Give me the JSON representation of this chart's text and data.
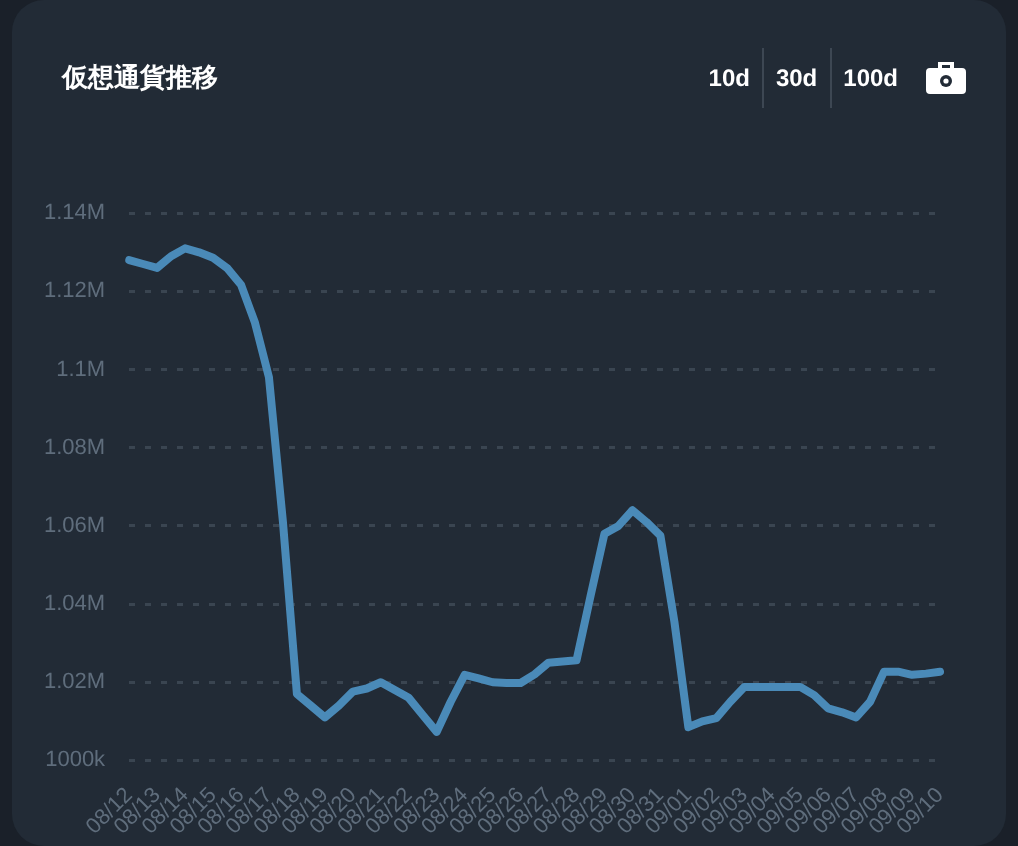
{
  "chart_data": {
    "type": "line",
    "title": "仮想通貨推移",
    "annotations": [
      "10d",
      "30d",
      "100d"
    ],
    "categories": [
      "08/12",
      null,
      "08/13",
      null,
      "08/14",
      null,
      "08/15",
      null,
      "08/16",
      null,
      "08/17",
      null,
      "08/18",
      null,
      "08/19",
      null,
      "08/20",
      null,
      "08/21",
      null,
      "08/22",
      null,
      "08/23",
      null,
      "08/24",
      null,
      "08/25",
      null,
      "08/26",
      null,
      "08/27",
      null,
      "08/28",
      null,
      "08/29",
      null,
      "08/30",
      null,
      "08/31",
      null,
      "09/01",
      null,
      "09/02",
      null,
      "09/03",
      null,
      "09/04",
      null,
      "09/05",
      null,
      "09/06",
      null,
      "09/07",
      null,
      "09/08",
      null,
      "09/09",
      null,
      "09/10"
    ],
    "series": [
      {
        "color": "#4a8ab8",
        "values": [
          1128000,
          1127000,
          1126000,
          1129000,
          1131000,
          1130000,
          1128600,
          1126000,
          1121700,
          1112000,
          1098000,
          1061000,
          1017000,
          1014000,
          1011000,
          1014000,
          1017600,
          1018400,
          1020000,
          1018000,
          1016000,
          1011600,
          1007300,
          1015000,
          1021900,
          1021000,
          1020000,
          1019800,
          1019800,
          1022000,
          1025000,
          1025300,
          1025600,
          1042000,
          1058000,
          1060000,
          1064000,
          1061000,
          1057500,
          1035500,
          1008500,
          1010000,
          1010800,
          1015000,
          1018800,
          1018800,
          1018800,
          1018800,
          1018800,
          1016700,
          1013300,
          1012300,
          1011000,
          1015000,
          1022700,
          1022700,
          1021900,
          1022200,
          1022700
        ]
      }
    ],
    "ylim": [
      1000000,
      1140000
    ],
    "yticks": [
      {
        "value": 1000000,
        "label": "1000k"
      },
      {
        "value": 1020000,
        "label": "1.02M"
      },
      {
        "value": 1040000,
        "label": "1.04M"
      },
      {
        "value": 1060000,
        "label": "1.06M"
      },
      {
        "value": 1080000,
        "label": "1.08M"
      },
      {
        "value": 1100000,
        "label": "1.1M"
      },
      {
        "value": 1120000,
        "label": "1.12M"
      },
      {
        "value": 1140000,
        "label": "1.14M"
      }
    ],
    "grid": "y",
    "legend": false,
    "marker": "none",
    "line_style": "solid"
  }
}
